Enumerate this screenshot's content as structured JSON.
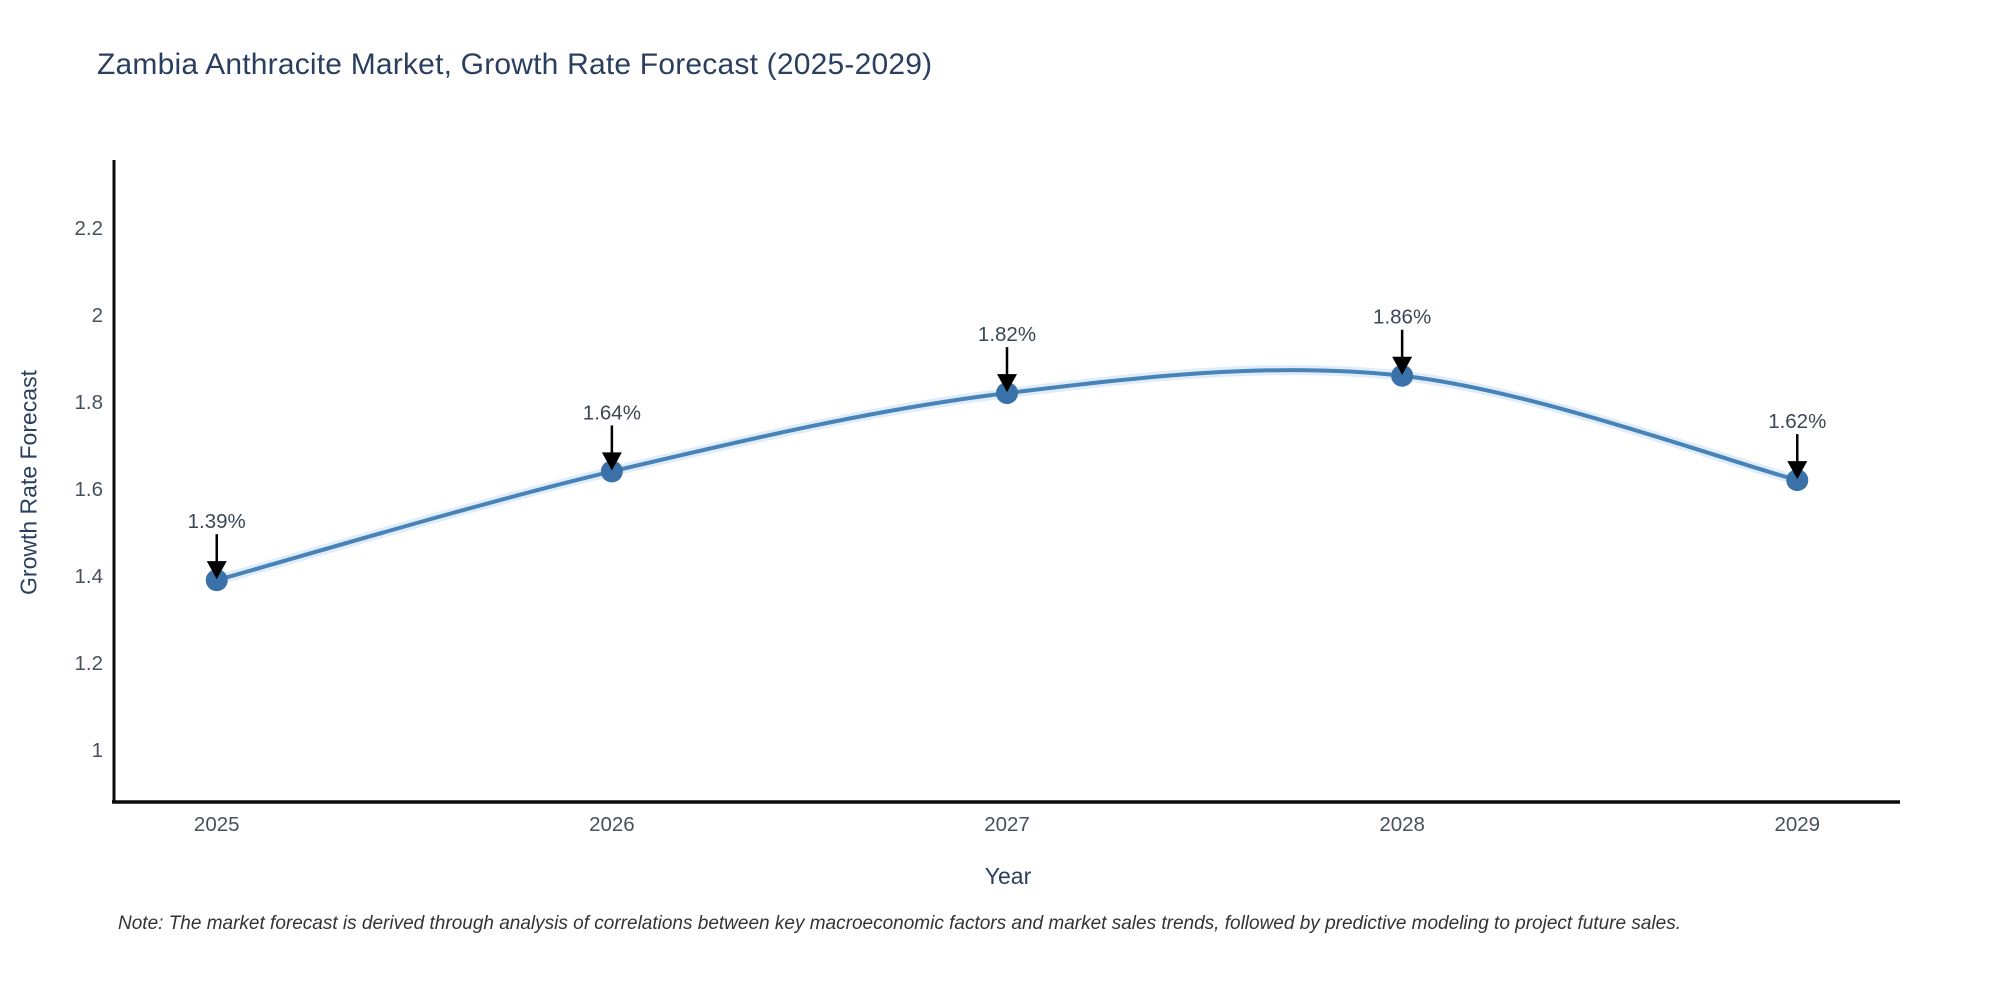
{
  "page": {
    "title": "Zambia Anthracite Market, Growth Rate Forecast (2025-2029)",
    "note": "Note: The market forecast is derived through analysis of correlations between key macroeconomic factors and market sales trends, followed by predictive modeling to project future sales."
  },
  "chart_data": {
    "type": "line",
    "title": "Zambia Anthracite Market, Growth Rate Forecast (2025-2029)",
    "xlabel": "Year",
    "ylabel": "Growth Rate Forecast",
    "x": [
      2025,
      2026,
      2027,
      2028,
      2029
    ],
    "y": [
      1.39,
      1.64,
      1.82,
      1.86,
      1.62
    ],
    "point_labels": [
      "1.39%",
      "1.64%",
      "1.82%",
      "1.86%",
      "1.62%"
    ],
    "xticks": [
      "2025",
      "2026",
      "2027",
      "2028",
      "2029"
    ],
    "yticks": [
      1,
      1.2,
      1.4,
      1.6,
      1.8,
      2,
      2.2
    ],
    "ytick_labels": [
      "1",
      "1.2",
      "1.4",
      "1.6",
      "1.8",
      "2",
      "2.2"
    ],
    "xlim": [
      2024.74,
      2029.26
    ],
    "ylim": [
      0.88,
      2.356
    ],
    "line_shape": "spline",
    "grid": false,
    "legend": "none",
    "colors": {
      "line": "#4783b8",
      "line_halo": "rgba(165,200,232,0.35)",
      "marker": "#3a71a8",
      "axis": "#0b0b0b",
      "tick_text": "#47505c",
      "annotation_text": "#3c4654",
      "arrow": "#000000",
      "title_text": "#2a3f5f"
    }
  }
}
